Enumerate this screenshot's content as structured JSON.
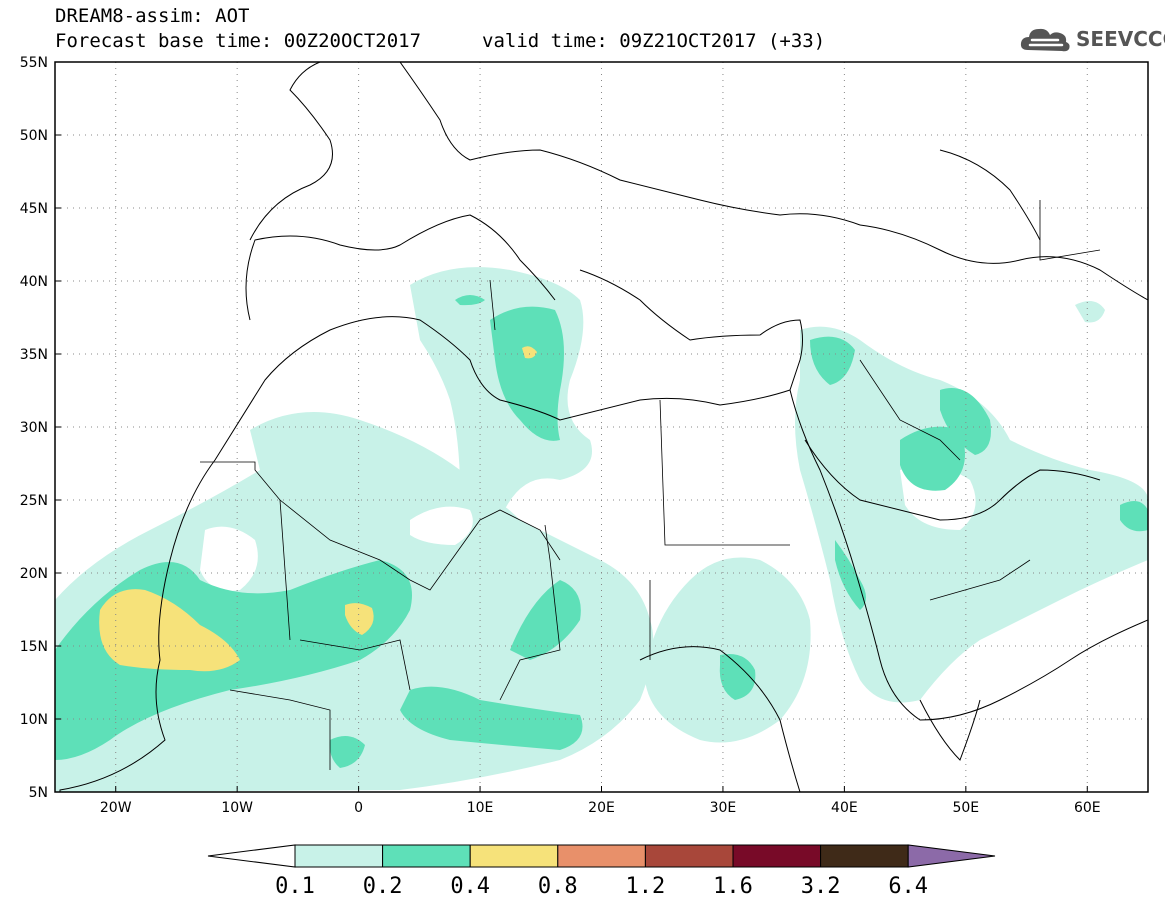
{
  "header": {
    "line1": "DREAM8-assim: AOT",
    "base_time": "Forecast base time: 00Z20OCT2017",
    "valid_time": "valid time: 09Z21OCT2017 (+33)",
    "logo_text": "SEEVCCC",
    "logo_icon": "cloud-icon"
  },
  "map": {
    "lon_range": [
      -25,
      65
    ],
    "lat_range": [
      5,
      55
    ],
    "lat_labels": [
      "55N",
      "50N",
      "45N",
      "40N",
      "35N",
      "30N",
      "25N",
      "20N",
      "15N",
      "10N",
      "5N"
    ],
    "lon_labels": [
      "20W",
      "10W",
      "0",
      "10E",
      "20E",
      "30E",
      "40E",
      "50E",
      "60E"
    ],
    "grid": "dotted"
  },
  "legend": {
    "levels": [
      "0.1",
      "0.2",
      "0.4",
      "0.8",
      "1.2",
      "1.6",
      "3.2",
      "6.4"
    ],
    "colors": [
      "#ffffff",
      "#c8f2e8",
      "#5ee0b8",
      "#f6e27a",
      "#e8906a",
      "#a8473a",
      "#780a28",
      "#3f2a18",
      "#8c6aa8"
    ]
  }
}
